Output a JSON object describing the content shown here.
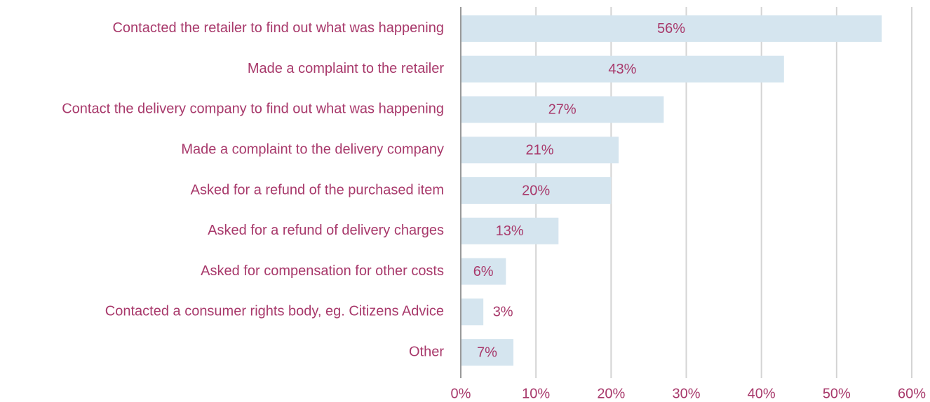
{
  "chart_data": {
    "type": "bar",
    "orientation": "horizontal",
    "categories": [
      "Contacted the retailer to find out what was happening",
      "Made a complaint to the retailer",
      "Contact the delivery company to find out what was happening",
      "Made a complaint to the delivery company",
      "Asked for a refund of the purchased item",
      "Asked for a refund of delivery charges",
      "Asked for compensation for other costs",
      "Contacted a consumer rights body, eg. Citizens Advice",
      "Other"
    ],
    "values": [
      56,
      43,
      27,
      21,
      20,
      13,
      6,
      3,
      7
    ],
    "value_labels": [
      "56%",
      "43%",
      "27%",
      "21%",
      "20%",
      "13%",
      "6%",
      "3%",
      "7%"
    ],
    "color": "#d5e5ef",
    "xlim": [
      0,
      60
    ],
    "xticks": [
      {
        "value": 0,
        "label": "0%"
      },
      {
        "value": 10,
        "label": "10%"
      },
      {
        "value": 20,
        "label": "20%"
      },
      {
        "value": 30,
        "label": "30%"
      },
      {
        "value": 40,
        "label": "40%"
      },
      {
        "value": 50,
        "label": "50%"
      },
      {
        "value": 60,
        "label": "60%"
      }
    ],
    "grid": true
  }
}
